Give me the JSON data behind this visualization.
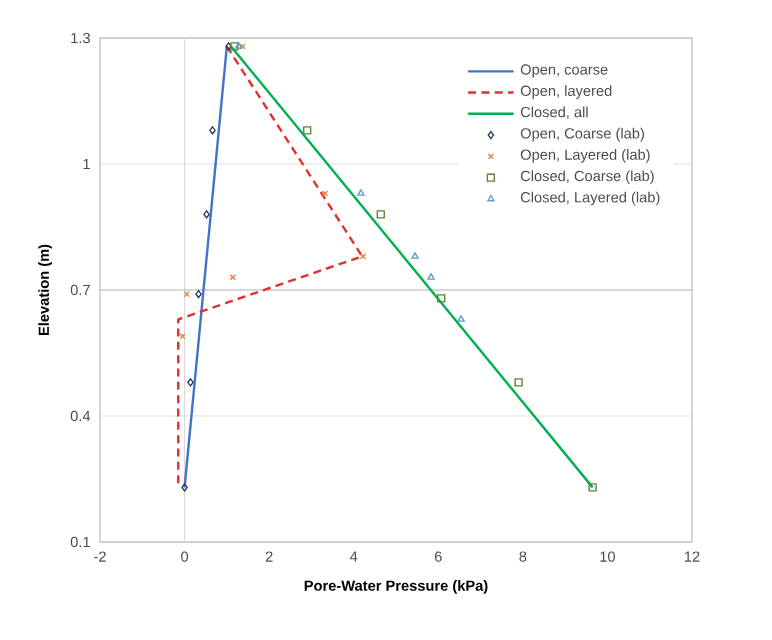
{
  "chart_data": {
    "type": "line",
    "xlabel": "Pore-Water Pressure (kPa)",
    "ylabel": "Elevation (m)",
    "xlim": [
      -2,
      12
    ],
    "xticks": [
      -2,
      0,
      2,
      4,
      6,
      8,
      10,
      12
    ],
    "ylim": [
      0.1,
      1.3
    ],
    "yticks": [
      0.1,
      0.4,
      0.7,
      1,
      1.3
    ],
    "grid": "y",
    "legend": "top right",
    "ref_lines": [
      {
        "axis": "x",
        "value": 0,
        "color": "#d9d9d9"
      },
      {
        "axis": "y",
        "value": 0.7,
        "color": "#bfbfbf"
      }
    ],
    "series": [
      {
        "name": "Open, coarse",
        "color": "#4472c4",
        "line_style": "solid",
        "marker": "none",
        "x": [
          0,
          1.0
        ],
        "values": [
          0.23,
          1.28
        ]
      },
      {
        "name": "Open, layered",
        "color": "#e03030",
        "line_style": "dashed",
        "marker": "none",
        "x": [
          1.0,
          4.2,
          -0.15,
          -0.15
        ],
        "values": [
          1.28,
          0.78,
          0.63,
          0.23
        ]
      },
      {
        "name": "Closed, all",
        "color": "#00b050",
        "line_style": "solid",
        "marker": "none",
        "x": [
          1.1,
          9.65
        ],
        "values": [
          1.28,
          0.23
        ]
      },
      {
        "name": "Open, Coarse (lab)",
        "type": "scatter",
        "color": "#1f3864",
        "marker": "diamond",
        "x": [
          0,
          0.14,
          0.33,
          0.52,
          0.66,
          1.04
        ],
        "values": [
          0.23,
          0.48,
          0.69,
          0.88,
          1.08,
          1.28
        ]
      },
      {
        "name": "Open, Layered (lab)",
        "type": "scatter",
        "color": "#ed7d31",
        "marker": "cross",
        "x": [
          -0.05,
          0.05,
          1.14,
          4.22,
          3.32,
          1.37
        ],
        "values": [
          0.59,
          0.69,
          0.73,
          0.78,
          0.93,
          1.28
        ]
      },
      {
        "name": "Closed, Coarse (lab)",
        "type": "scatter",
        "color": "#548235",
        "marker": "square",
        "x": [
          9.65,
          7.9,
          6.07,
          4.64,
          2.9,
          1.18
        ],
        "values": [
          0.23,
          0.48,
          0.68,
          0.88,
          1.08,
          1.28
        ]
      },
      {
        "name": "Closed, Layered (lab)",
        "type": "scatter",
        "color": "#5b9bd5",
        "marker": "triangle",
        "x": [
          6.54,
          5.83,
          5.45,
          4.17,
          1.28
        ],
        "values": [
          0.63,
          0.73,
          0.78,
          0.93,
          1.28
        ]
      }
    ]
  }
}
